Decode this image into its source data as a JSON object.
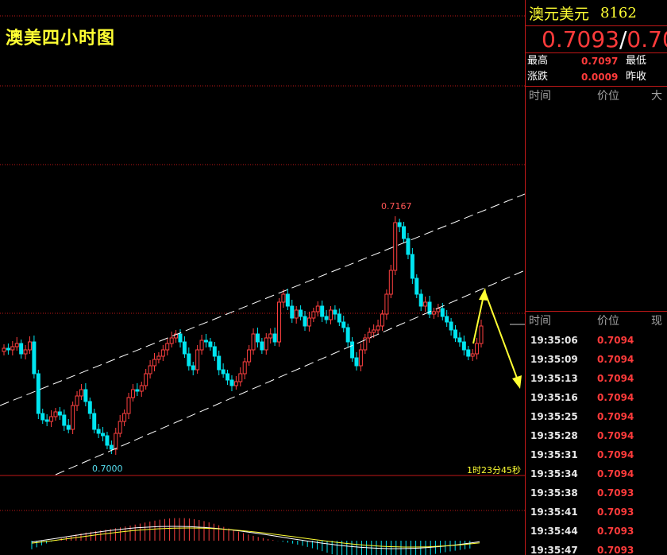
{
  "chart": {
    "title": "澳美四小时图",
    "high_label": "0.7167",
    "low_label": "0.7000",
    "countdown": "1时23分45秒"
  },
  "quote": {
    "name": "澳元美元",
    "code": "8162",
    "price": "0.7093",
    "price_second": "0.70",
    "stats": [
      {
        "label": "最高",
        "value": "0.7097",
        "label2": "最低"
      },
      {
        "label": "涨跌",
        "value": "0.0009",
        "label2": "昨收"
      }
    ],
    "top_columns": [
      "时间",
      "价位",
      "大"
    ],
    "tick_columns": [
      "时间",
      "价位",
      "现"
    ],
    "ticks": [
      {
        "time": "19:35:06",
        "price": "0.7094"
      },
      {
        "time": "19:35:09",
        "price": "0.7094"
      },
      {
        "time": "19:35:13",
        "price": "0.7094"
      },
      {
        "time": "19:35:16",
        "price": "0.7094"
      },
      {
        "time": "19:35:25",
        "price": "0.7094"
      },
      {
        "time": "19:35:28",
        "price": "0.7094"
      },
      {
        "time": "19:35:31",
        "price": "0.7094"
      },
      {
        "time": "19:35:34",
        "price": "0.7094"
      },
      {
        "time": "19:35:38",
        "price": "0.7093"
      },
      {
        "time": "19:35:41",
        "price": "0.7093"
      },
      {
        "time": "19:35:44",
        "price": "0.7093"
      },
      {
        "time": "19:35:47",
        "price": "0.7093"
      }
    ]
  },
  "colors": {
    "up": "#ff4040",
    "down": "#00e5f0",
    "title": "#ffff33",
    "grid": "#c01818"
  }
}
